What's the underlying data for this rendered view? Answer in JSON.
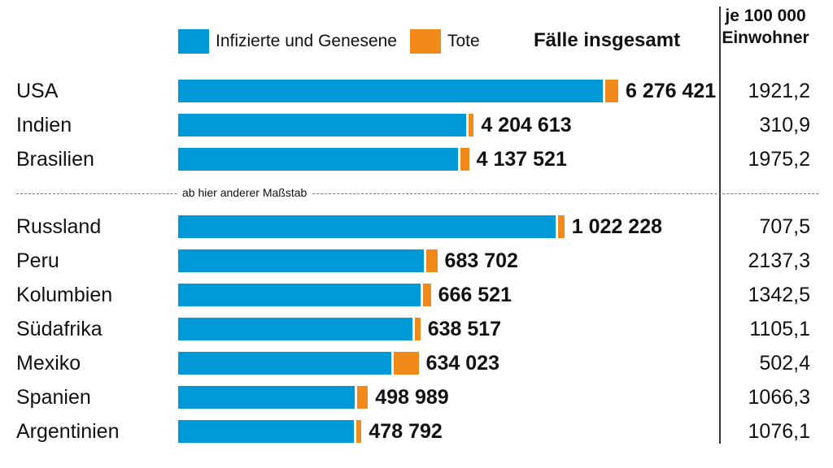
{
  "legend": {
    "recovered_label": "Infizierte und Genesene",
    "deaths_label": "Tote",
    "total_label": "Fälle insgesamt",
    "per100k_label_line1": "je 100 000",
    "per100k_label_line2": "Einwohner"
  },
  "scale_note": "ab hier anderer Maßstab",
  "colors": {
    "recovered": "#0099d8",
    "deaths": "#f28a1b"
  },
  "chart_data": {
    "type": "bar",
    "orientation": "horizontal",
    "stacked": true,
    "series": [
      {
        "name": "Infizierte und Genesene",
        "key": "recovered"
      },
      {
        "name": "Tote",
        "key": "deaths"
      }
    ],
    "groups": [
      {
        "scale_max_cases": 7000000,
        "rows": [
          {
            "country": "USA",
            "total": 6276421,
            "total_label": "6 276 421",
            "per100k": "1921,2",
            "deaths_est": 189000
          },
          {
            "country": "Indien",
            "total": 4204613,
            "total_label": "4 204 613",
            "per100k": "310,9",
            "deaths_est": 72000
          },
          {
            "country": "Brasilien",
            "total": 4137521,
            "total_label": "4 137 521",
            "per100k": "1975,2",
            "deaths_est": 127000
          }
        ]
      },
      {
        "scale_max_cases": 1300000,
        "rows": [
          {
            "country": "Russland",
            "total": 1022228,
            "total_label": "1 022 228",
            "per100k": "707,5",
            "deaths_est": 17800
          },
          {
            "country": "Peru",
            "total": 683702,
            "total_label": "683 702",
            "per100k": "2137,3",
            "deaths_est": 29600
          },
          {
            "country": "Kolumbien",
            "total": 666521,
            "total_label": "666 521",
            "per100k": "1342,5",
            "deaths_est": 21400
          },
          {
            "country": "Südafrika",
            "total": 638517,
            "total_label": "638 517",
            "per100k": "1105,1",
            "deaths_est": 15000
          },
          {
            "country": "Mexiko",
            "total": 634023,
            "total_label": "634 023",
            "per100k": "502,4",
            "deaths_est": 67300
          },
          {
            "country": "Spanien",
            "total": 498989,
            "total_label": "498 989",
            "per100k": "1066,3",
            "deaths_est": 29400
          },
          {
            "country": "Argentinien",
            "total": 478792,
            "total_label": "478 792",
            "per100k": "1076,1",
            "deaths_est": 9900
          }
        ]
      }
    ]
  }
}
